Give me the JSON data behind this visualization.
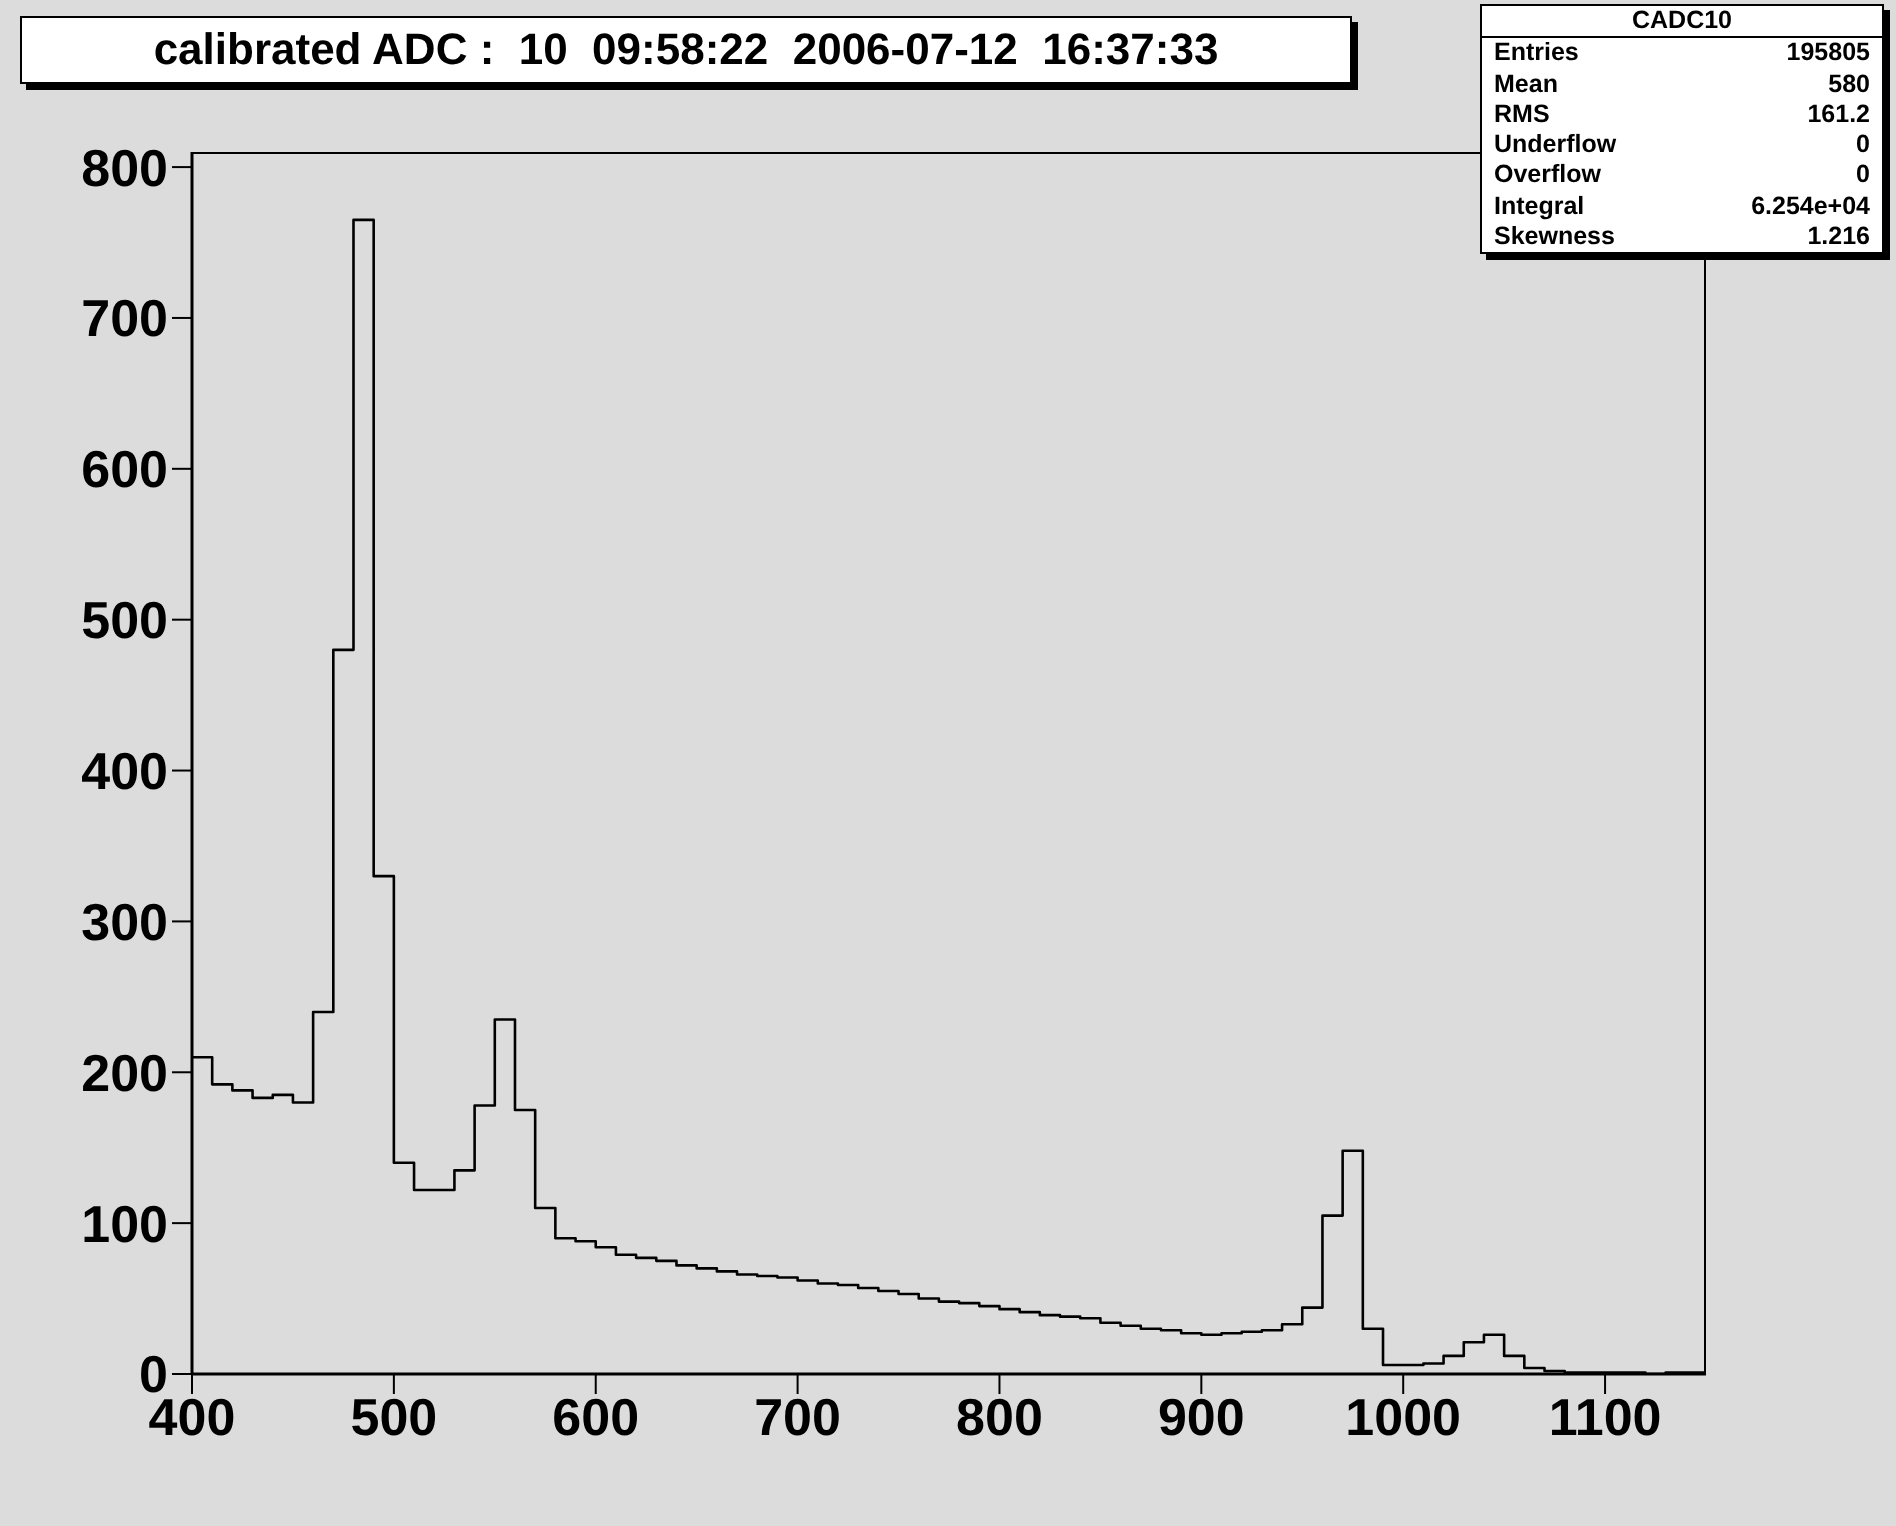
{
  "chart_data": {
    "type": "histogram",
    "title": "calibrated ADC :  10  09:58:22  2006-07-12  16:37:33",
    "annotations": [
      "CADC10",
      "Entries",
      "195805",
      "Mean",
      "580",
      "RMS",
      "161.2",
      "Underflow",
      "0",
      "Overflow",
      "0",
      "Integral",
      "6.254e+04",
      "Skewness",
      "1.216"
    ],
    "bins": [
      400,
      410,
      420,
      430,
      440,
      450,
      460,
      470,
      480,
      490,
      500,
      510,
      520,
      530,
      540,
      550,
      560,
      570,
      580,
      590,
      600,
      610,
      620,
      630,
      640,
      650,
      660,
      670,
      680,
      690,
      700,
      710,
      720,
      730,
      740,
      750,
      760,
      770,
      780,
      790,
      800,
      810,
      820,
      830,
      840,
      850,
      860,
      870,
      880,
      890,
      900,
      910,
      920,
      930,
      940,
      950,
      960,
      970,
      980,
      990,
      1000,
      1010,
      1020,
      1030,
      1040,
      1050,
      1060,
      1070,
      1080,
      1090,
      1100,
      1110,
      1120,
      1130,
      1140,
      1150
    ],
    "values": [
      210,
      192,
      188,
      183,
      185,
      180,
      240,
      480,
      765,
      330,
      140,
      122,
      122,
      135,
      178,
      235,
      175,
      110,
      90,
      88,
      84,
      79,
      77,
      75,
      72,
      70,
      68,
      66,
      65,
      64,
      62,
      60,
      59,
      57,
      55,
      53,
      50,
      48,
      47,
      45,
      43,
      41,
      39,
      38,
      37,
      34,
      32,
      30,
      29,
      27,
      26,
      27,
      28,
      29,
      33,
      44,
      105,
      148,
      30,
      6,
      6,
      7,
      12,
      21,
      26,
      12,
      4,
      2,
      1,
      1,
      1,
      1,
      0,
      1,
      1
    ],
    "color": "#000000",
    "xlim": [
      400,
      1150
    ],
    "xticks": [
      400,
      500,
      600,
      700,
      800,
      900,
      1000,
      1100
    ],
    "ylim": [
      0,
      810
    ],
    "yticks": [
      0,
      100,
      200,
      300,
      400,
      500,
      600,
      700,
      800
    ]
  }
}
